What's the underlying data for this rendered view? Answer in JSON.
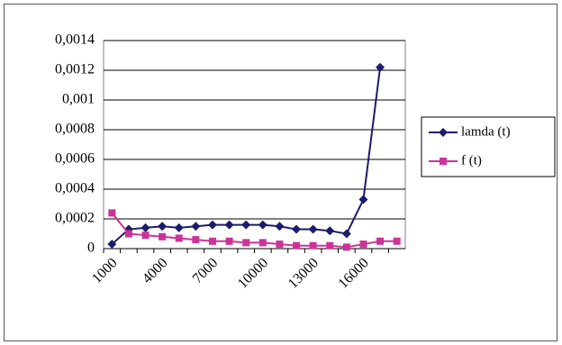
{
  "chart_data": {
    "type": "line",
    "categories": [
      "1000",
      null,
      null,
      "4000",
      null,
      null,
      "7000",
      null,
      null,
      "10000",
      null,
      null,
      "13000",
      null,
      null,
      "16000",
      null,
      null
    ],
    "series": [
      {
        "name": "lamda (t)",
        "color": "#1c1c6b",
        "marker": "diamond",
        "values": [
          3e-05,
          0.00013,
          0.00014,
          0.00015,
          0.00014,
          0.00015,
          0.00016,
          0.00016,
          0.00016,
          0.00016,
          0.00015,
          0.00013,
          0.00013,
          0.00012,
          0.0001,
          0.00033,
          0.00122,
          null
        ]
      },
      {
        "name": "f (t)",
        "color": "#cc3399",
        "marker": "square",
        "values": [
          0.00024,
          0.0001,
          9e-05,
          8e-05,
          7e-05,
          6e-05,
          5e-05,
          5e-05,
          4e-05,
          4e-05,
          3e-05,
          2e-05,
          2e-05,
          2e-05,
          1e-05,
          3e-05,
          5e-05,
          5e-05
        ]
      }
    ],
    "ylim": [
      0,
      0.0014
    ],
    "yticks": [
      0,
      {
        "value": 0.0002,
        "label": "0,0002"
      },
      {
        "value": 0.0004,
        "label": "0,0004"
      },
      {
        "value": 0.0006,
        "label": "0,0006"
      },
      {
        "value": 0.0008,
        "label": "0,0008"
      },
      {
        "value": 0.001,
        "label": "0,001"
      },
      {
        "value": 0.0012,
        "label": "0,0012"
      },
      {
        "value": 0.0014,
        "label": "0,0014"
      }
    ],
    "grid": true,
    "legend": "right"
  }
}
